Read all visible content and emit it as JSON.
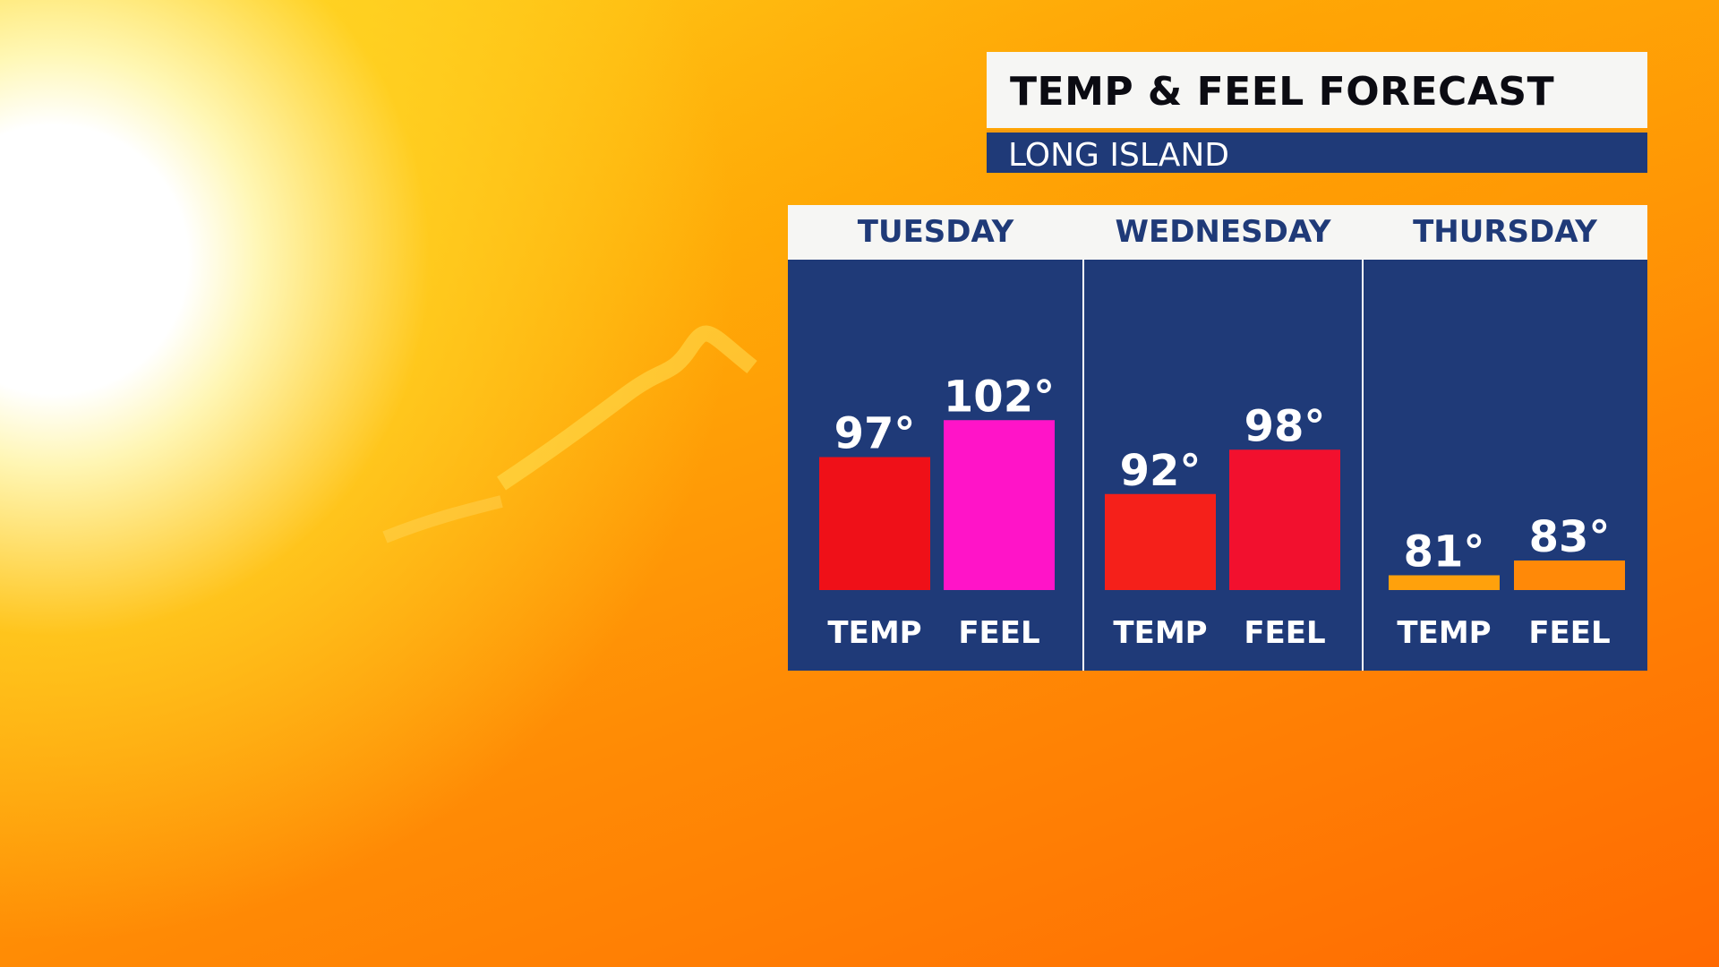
{
  "header": {
    "title": "TEMP & FEEL FORECAST",
    "location": "LONG ISLAND"
  },
  "colors": {
    "panel_blue": "#1f3a78",
    "header_bg": "#f6f6f4",
    "accent_orange": "#f59a0e"
  },
  "chart_data": {
    "type": "bar",
    "categories": [
      "TUESDAY",
      "WEDNESDAY",
      "THURSDAY"
    ],
    "bar_labels": [
      "TEMP",
      "FEEL"
    ],
    "unit": "°",
    "series": [
      {
        "name": "TEMP",
        "values": [
          97,
          92,
          81
        ],
        "colors": [
          "#ef1018",
          "#f5201a",
          "#ffa10c"
        ]
      },
      {
        "name": "FEEL",
        "values": [
          102,
          98,
          83
        ],
        "colors": [
          "#ff14c8",
          "#f2102e",
          "#ff8908"
        ]
      }
    ],
    "ylim": [
      79,
      107
    ]
  }
}
